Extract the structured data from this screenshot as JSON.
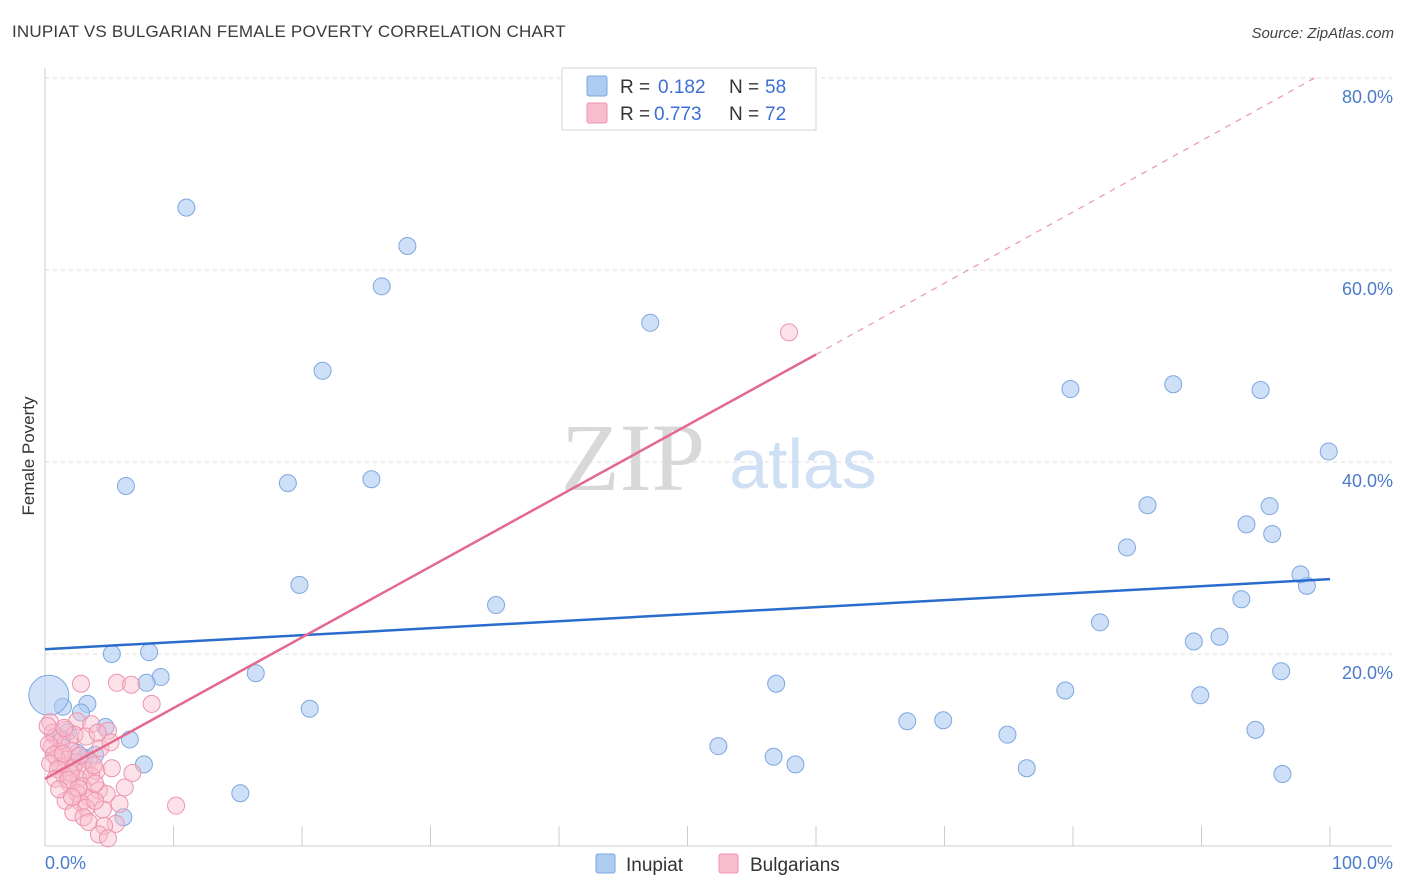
{
  "title": "INUPIAT VS BULGARIAN FEMALE POVERTY CORRELATION CHART",
  "source": "Source: ZipAtlas.com",
  "watermark": {
    "zip": "ZIP",
    "atlas": "atlas"
  },
  "legend": {
    "rows": [
      {
        "r_label": "R =",
        "r_value": "0.182",
        "n_label": "N =",
        "n_value": "58",
        "color": "#aecbf2"
      },
      {
        "r_label": "R =",
        "r_value": "0.773",
        "n_label": "N =",
        "n_value": "72",
        "color": "#f8bccd"
      }
    ]
  },
  "colors": {
    "inupiat_fill": "#aecbf2",
    "inupiat_stroke": "#7ea7e0",
    "inupiat_line": "#2a6ccc",
    "bulgarian_fill": "#f8bccd",
    "bulgarian_stroke": "#ec94b0",
    "bulgarian_line": "#e4688f",
    "tick_text": "#4a7cc9",
    "grid": "#dddddd"
  },
  "chart_data": {
    "type": "scatter",
    "title": "INUPIAT VS BULGARIAN FEMALE POVERTY CORRELATION CHART",
    "xlabel": "",
    "ylabel": "Female Poverty",
    "xlim": [
      0,
      100
    ],
    "ylim": [
      0,
      80
    ],
    "x_tick_labels": [
      "0.0%",
      "100.0%"
    ],
    "y_ticks": [
      20,
      40,
      60,
      80
    ],
    "y_tick_labels": [
      "20.0%",
      "40.0%",
      "60.0%",
      "80.0%"
    ],
    "bottom_legend": [
      "Inupiat",
      "Bulgarians"
    ],
    "series": [
      {
        "name": "Inupiat",
        "r": 0.182,
        "n": 58,
        "trend": {
          "x0": 0,
          "y0": 20.5,
          "x1": 100,
          "y1": 27.8
        },
        "points": [
          [
            11,
            66.5
          ],
          [
            28.2,
            62.5
          ],
          [
            26.2,
            58.3
          ],
          [
            47.1,
            54.5
          ],
          [
            21.6,
            49.5
          ],
          [
            6.3,
            37.5
          ],
          [
            18.9,
            37.8
          ],
          [
            25.4,
            38.2
          ],
          [
            79.8,
            47.6
          ],
          [
            87.8,
            48.1
          ],
          [
            94.6,
            47.5
          ],
          [
            99.9,
            41.1
          ],
          [
            85.8,
            35.5
          ],
          [
            95.3,
            35.4
          ],
          [
            93.5,
            33.5
          ],
          [
            95.5,
            32.5
          ],
          [
            84.2,
            31.1
          ],
          [
            98.2,
            27.1
          ],
          [
            97.7,
            28.3
          ],
          [
            93.1,
            25.7
          ],
          [
            19.8,
            27.2
          ],
          [
            35.1,
            25.1
          ],
          [
            82.1,
            23.3
          ],
          [
            89.4,
            21.3
          ],
          [
            91.4,
            21.8
          ],
          [
            5.2,
            20
          ],
          [
            8.1,
            20.2
          ],
          [
            3.3,
            14.8
          ],
          [
            1.4,
            14.5
          ],
          [
            2.8,
            13.9
          ],
          [
            4.7,
            12.4
          ],
          [
            1.2,
            11.3
          ],
          [
            6.6,
            11.1
          ],
          [
            9,
            17.6
          ],
          [
            7.9,
            17
          ],
          [
            16.4,
            18
          ],
          [
            20.6,
            14.3
          ],
          [
            56.9,
            16.9
          ],
          [
            79.4,
            16.2
          ],
          [
            89.9,
            15.7
          ],
          [
            96.2,
            18.2
          ],
          [
            67.1,
            13
          ],
          [
            69.9,
            13.1
          ],
          [
            74.9,
            11.6
          ],
          [
            94.2,
            12.1
          ],
          [
            52.4,
            10.4
          ],
          [
            56.7,
            9.3
          ],
          [
            58.4,
            8.5
          ],
          [
            76.4,
            8.1
          ],
          [
            96.3,
            7.5
          ],
          [
            3.1,
            9.2
          ],
          [
            7.7,
            8.5
          ],
          [
            6.1,
            3
          ],
          [
            15.2,
            5.5
          ],
          [
            0.3,
            15.7
          ],
          [
            1.8,
            11.9
          ],
          [
            2.5,
            9.7
          ],
          [
            3.9,
            9.5
          ]
        ]
      },
      {
        "name": "Bulgarians",
        "r": 0.773,
        "n": 72,
        "trend": {
          "x0": 0,
          "y0": 7,
          "x1": 60,
          "y1": 51.2,
          "dash_x1": 98.8,
          "dash_y1": 80
        },
        "points": [
          [
            57.9,
            53.5
          ],
          [
            2.8,
            16.9
          ],
          [
            5.6,
            17
          ],
          [
            6.7,
            16.8
          ],
          [
            8.3,
            14.8
          ],
          [
            0.4,
            12.9
          ],
          [
            1.6,
            12.1
          ],
          [
            2.5,
            13
          ],
          [
            3.6,
            12.7
          ],
          [
            4.9,
            12
          ],
          [
            0.8,
            11.4
          ],
          [
            1.9,
            10.7
          ],
          [
            0.5,
            10.3
          ],
          [
            1.1,
            9.8
          ],
          [
            2.1,
            9.9
          ],
          [
            4.3,
            10.2
          ],
          [
            5.1,
            10.8
          ],
          [
            0.9,
            9.2
          ],
          [
            1.7,
            9
          ],
          [
            2.4,
            8.7
          ],
          [
            3.4,
            8.9
          ],
          [
            1.2,
            8.3
          ],
          [
            2.2,
            8.1
          ],
          [
            3.1,
            7.9
          ],
          [
            4,
            7.8
          ],
          [
            5.2,
            8.1
          ],
          [
            6.8,
            7.6
          ],
          [
            1.5,
            7.3
          ],
          [
            2.6,
            7
          ],
          [
            3.6,
            7.3
          ],
          [
            1.9,
            6.5
          ],
          [
            2.9,
            6.2
          ],
          [
            4.2,
            5.8
          ],
          [
            6.2,
            6.1
          ],
          [
            2.5,
            5.5
          ],
          [
            3.5,
            5
          ],
          [
            4.8,
            5.4
          ],
          [
            1.6,
            4.7
          ],
          [
            2.8,
            4.5
          ],
          [
            3.2,
            4
          ],
          [
            4.5,
            3.8
          ],
          [
            2.2,
            3.5
          ],
          [
            3,
            3
          ],
          [
            5.5,
            2.3
          ],
          [
            4.6,
            2.1
          ],
          [
            3.4,
            2.5
          ],
          [
            4.2,
            1.2
          ],
          [
            4.9,
            0.8
          ],
          [
            10.2,
            4.2
          ],
          [
            5.8,
            4.4
          ],
          [
            0.6,
            11.8
          ],
          [
            1.3,
            11
          ],
          [
            2.3,
            11.6
          ],
          [
            3.2,
            11.4
          ],
          [
            4.1,
            11.8
          ],
          [
            0.3,
            10.6
          ],
          [
            0.7,
            9.5
          ],
          [
            1.4,
            9.6
          ],
          [
            2.7,
            9.4
          ],
          [
            0.4,
            8.6
          ],
          [
            1,
            8
          ],
          [
            2,
            7.6
          ],
          [
            3.8,
            8.4
          ],
          [
            0.8,
            7
          ],
          [
            1.8,
            6.9
          ],
          [
            2.6,
            6
          ],
          [
            3.9,
            6.5
          ],
          [
            1.1,
            5.9
          ],
          [
            2.1,
            5.1
          ],
          [
            3.9,
            4.7
          ],
          [
            0.2,
            12.5
          ],
          [
            1.5,
            12.3
          ]
        ]
      }
    ]
  }
}
